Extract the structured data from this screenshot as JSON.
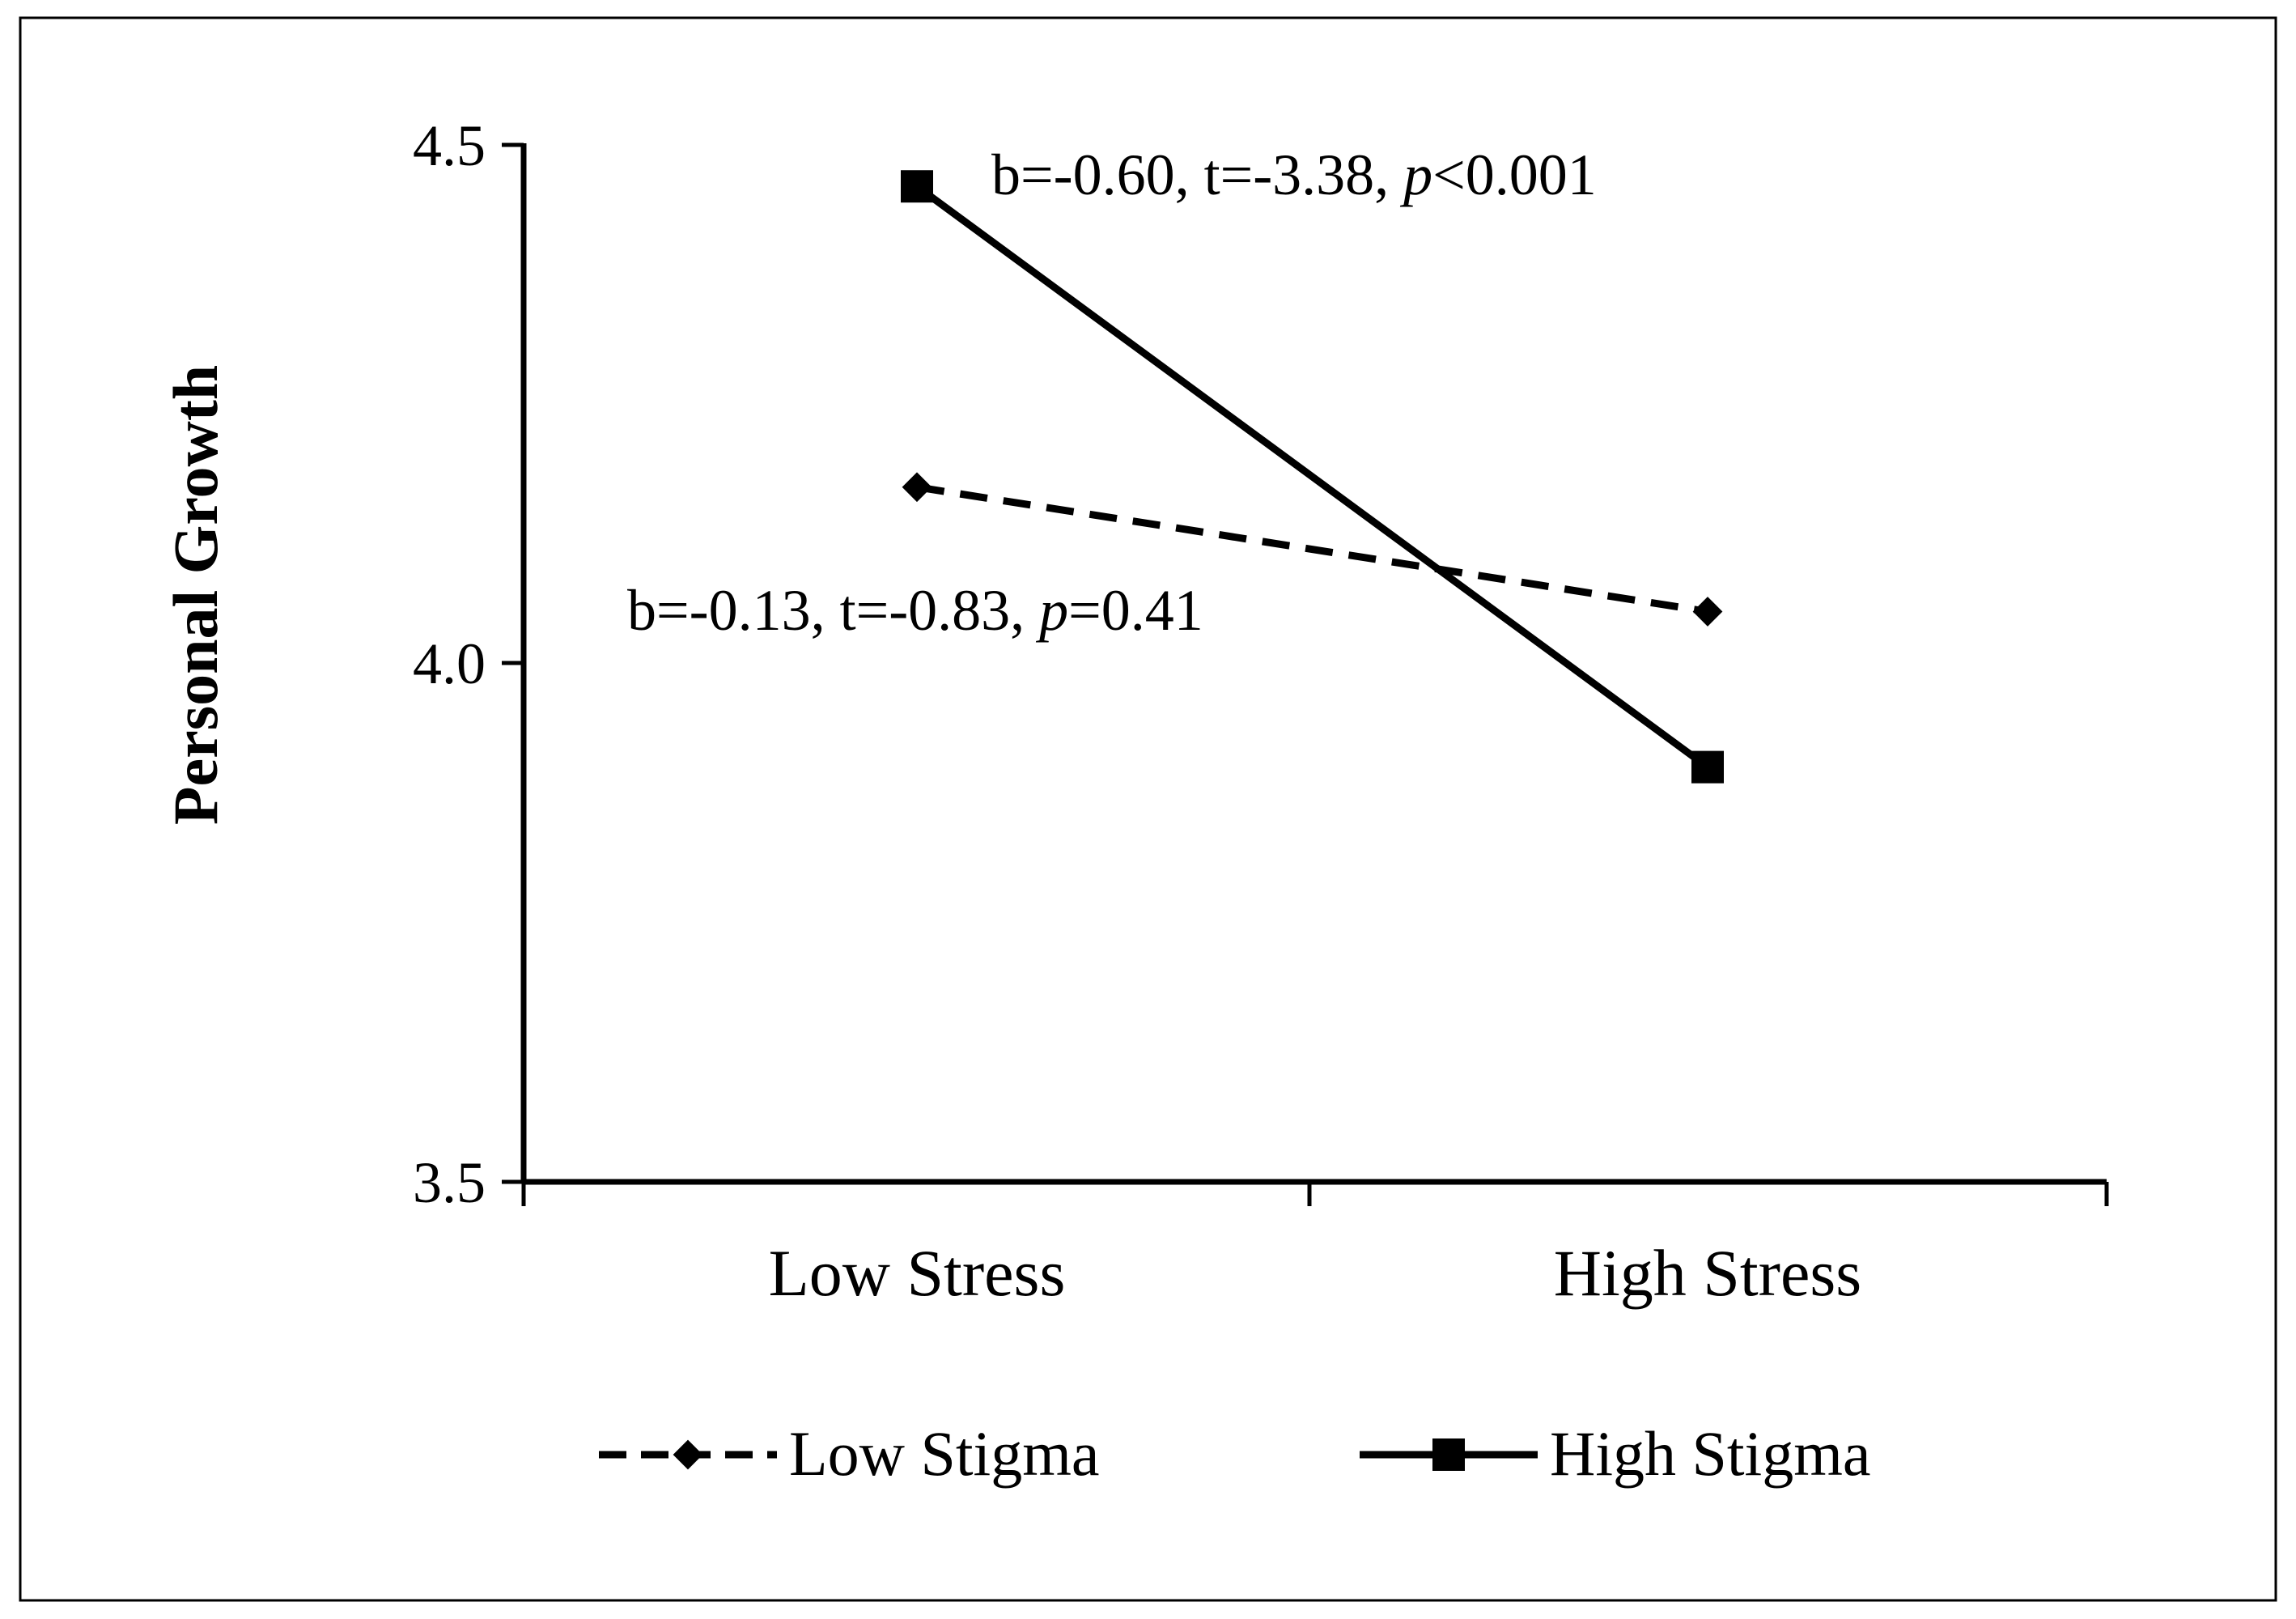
{
  "chart_data": {
    "type": "line",
    "title": "",
    "xlabel": "",
    "ylabel": "Personal Growth",
    "categories": [
      "Low Stress",
      "High Stress"
    ],
    "ylim": [
      3.5,
      4.5
    ],
    "yticks": [
      "3.5",
      "4.0",
      "4.5"
    ],
    "grid": false,
    "legend_position": "bottom",
    "series": [
      {
        "name": "Low Stigma",
        "values": [
          4.17,
          4.05
        ],
        "style": "dashed",
        "marker": "diamond",
        "color": "#000000"
      },
      {
        "name": "High Stigma",
        "values": [
          4.46,
          3.9
        ],
        "style": "solid",
        "marker": "square",
        "color": "#000000"
      }
    ],
    "annotations": [
      {
        "id": "high",
        "pre": "b=-0.60, t=-3.38, ",
        "italic": "p",
        "post": "<0.001"
      },
      {
        "id": "low",
        "pre": "b=-0.13, t=-0.83, ",
        "italic": "p",
        "post": "=0.41"
      }
    ]
  }
}
